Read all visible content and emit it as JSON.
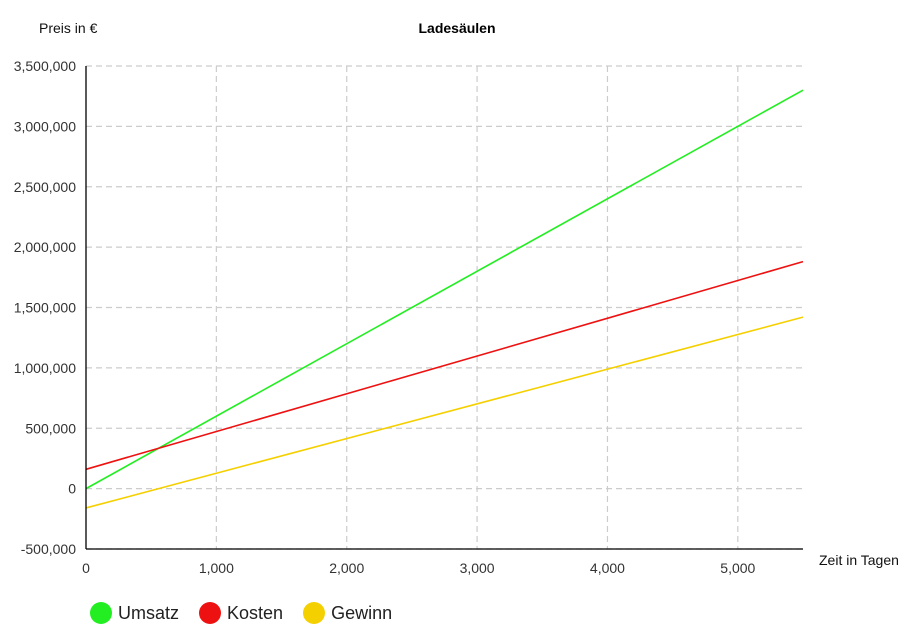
{
  "chart_data": {
    "type": "line",
    "title": "Ladesäulen",
    "ylabel": "Preis in €",
    "xlabel": "Zeit in Tagen",
    "xlim": [
      0,
      5500
    ],
    "ylim": [
      -500000,
      3500000
    ],
    "x_ticks": [
      0,
      1000,
      2000,
      3000,
      4000,
      5000
    ],
    "x_tick_labels": [
      "0",
      "1,000",
      "2,000",
      "3,000",
      "4,000",
      "5,000"
    ],
    "y_ticks": [
      -500000,
      0,
      500000,
      1000000,
      1500000,
      2000000,
      2500000,
      3000000,
      3500000
    ],
    "y_tick_labels": [
      "-500,000",
      "0",
      "500,000",
      "1,000,000",
      "1,500,000",
      "2,000,000",
      "2,500,000",
      "3,000,000",
      "3,500,000"
    ],
    "grid": true,
    "legend_position": "bottom-left",
    "series": [
      {
        "name": "Umsatz",
        "color": "#22ee22",
        "x": [
          0,
          5500
        ],
        "y": [
          0,
          3300000
        ]
      },
      {
        "name": "Kosten",
        "color": "#ee1111",
        "x": [
          0,
          5500
        ],
        "y": [
          160000,
          1880000
        ]
      },
      {
        "name": "Gewinn",
        "color": "#f5d000",
        "x": [
          0,
          5500
        ],
        "y": [
          -160000,
          1420000
        ]
      }
    ]
  }
}
